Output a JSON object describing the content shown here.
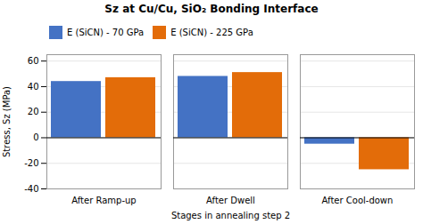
{
  "chart_data": {
    "type": "bar",
    "title": "Sz at Cu/Cu, SiO₂ Bonding Interface",
    "xlabel": "Stages in annealing step 2",
    "ylabel": "Stress, Sz (MPa)",
    "categories": [
      "After Ramp-up",
      "After Dwell",
      "After Cool-down"
    ],
    "series": [
      {
        "name": "E (SiCN) - 70 GPa",
        "color": "#4472C4",
        "values": [
          44,
          48,
          -5
        ]
      },
      {
        "name": "E (SiCN) - 225 GPa",
        "color": "#E36C09",
        "values": [
          47,
          51,
          -25
        ]
      }
    ],
    "ylim": [
      -40,
      65
    ],
    "yticks": [
      -40,
      -20,
      0,
      20,
      40,
      60
    ],
    "grid": true,
    "legend": "upper left"
  }
}
